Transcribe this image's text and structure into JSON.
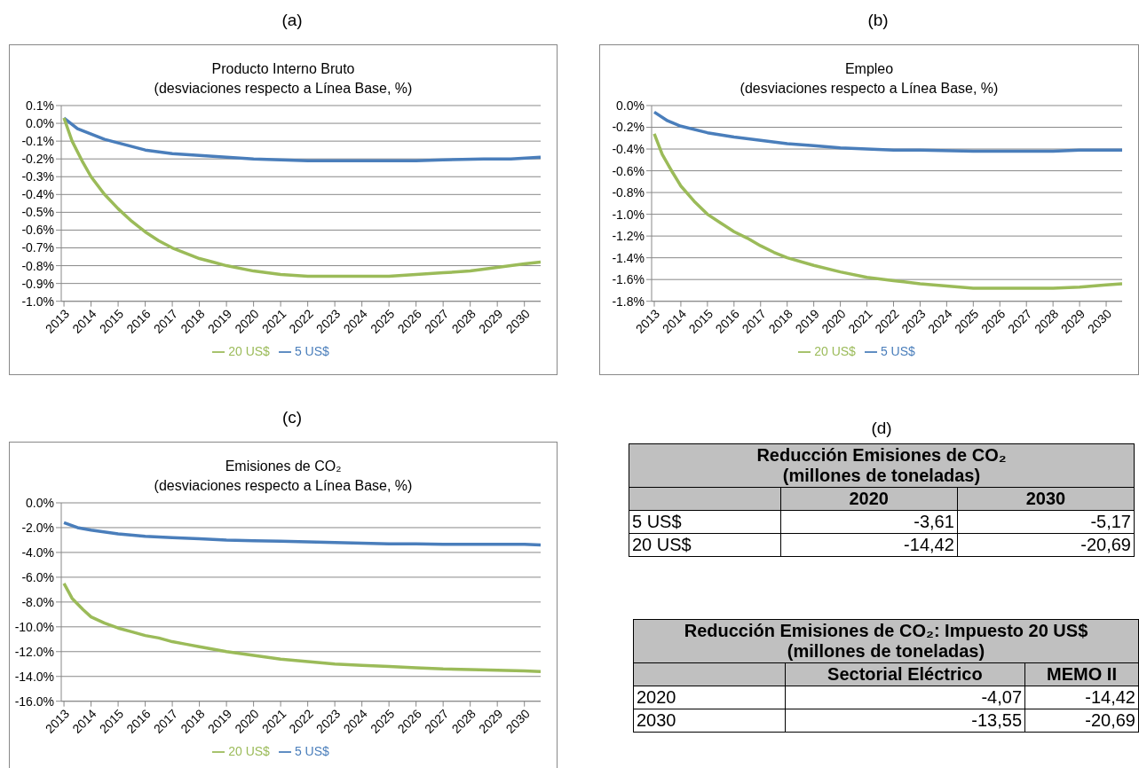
{
  "chart_data": [
    {
      "type": "line",
      "annotations": [
        "(a)"
      ],
      "title": "Producto Interno Bruto",
      "subtitle": "(desviaciones respecto a Línea Base, %)",
      "xlim": [
        2012.9,
        2030.6
      ],
      "xticks": [
        2013,
        2014,
        2015,
        2016,
        2017,
        2018,
        2019,
        2020,
        2021,
        2022,
        2023,
        2024,
        2025,
        2026,
        2027,
        2028,
        2029,
        2030
      ],
      "ylim": [
        -1.0,
        0.1
      ],
      "yticks": [
        {
          "value": 0.1,
          "label": "0.1%"
        },
        {
          "value": 0,
          "label": "0.0%"
        },
        {
          "value": -0.1,
          "label": "-0.1%"
        },
        {
          "value": -0.2,
          "label": "-0.2%"
        },
        {
          "value": -0.3,
          "label": "-0.3%"
        },
        {
          "value": -0.4,
          "label": "-0.4%"
        },
        {
          "value": -0.5,
          "label": "-0.5%"
        },
        {
          "value": -0.6,
          "label": "-0.6%"
        },
        {
          "value": -0.7,
          "label": "-0.7%"
        },
        {
          "value": -0.8,
          "label": "-0.8%"
        },
        {
          "value": -0.9,
          "label": "-0.9%"
        },
        {
          "value": -1.0,
          "label": "-1.0%"
        }
      ],
      "grid": "y",
      "legend": "bottom",
      "marker": "none",
      "line_style": "solid",
      "series": [
        {
          "name": "5 US$",
          "color": "#4a7ebb",
          "x": [
            2013,
            2013.5,
            2014,
            2014.5,
            2015,
            2016,
            2017,
            2018,
            2019,
            2020,
            2021,
            2022,
            2024,
            2026,
            2027,
            2028.5,
            2029.5,
            2030.6
          ],
          "values": [
            0.03,
            -0.03,
            -0.06,
            -0.09,
            -0.11,
            -0.15,
            -0.17,
            -0.18,
            -0.19,
            -0.2,
            -0.205,
            -0.21,
            -0.21,
            -0.21,
            -0.205,
            -0.2,
            -0.2,
            -0.19
          ]
        },
        {
          "name": "20 US$",
          "color": "#9bbb59",
          "x": [
            2013,
            2013.3,
            2013.7,
            2014,
            2014.5,
            2015,
            2015.5,
            2016,
            2016.5,
            2017,
            2017.5,
            2018,
            2018.5,
            2019,
            2020,
            2021,
            2022,
            2023,
            2024,
            2025,
            2026,
            2027,
            2028,
            2029,
            2030,
            2030.6
          ],
          "values": [
            0.03,
            -0.1,
            -0.22,
            -0.3,
            -0.4,
            -0.48,
            -0.55,
            -0.61,
            -0.66,
            -0.7,
            -0.73,
            -0.76,
            -0.78,
            -0.8,
            -0.83,
            -0.85,
            -0.86,
            -0.86,
            -0.86,
            -0.86,
            -0.85,
            -0.84,
            -0.83,
            -0.81,
            -0.79,
            -0.78
          ]
        }
      ]
    },
    {
      "type": "line",
      "annotations": [
        "(b)"
      ],
      "title": "Empleo",
      "subtitle": "(desviaciones respecto a Línea Base, %)",
      "xlim": [
        2012.9,
        2030.6
      ],
      "xticks": [
        2013,
        2014,
        2015,
        2016,
        2017,
        2018,
        2019,
        2020,
        2021,
        2022,
        2023,
        2024,
        2025,
        2026,
        2027,
        2028,
        2029,
        2030
      ],
      "ylim": [
        -1.8,
        0
      ],
      "yticks": [
        {
          "value": 0,
          "label": "0.0%"
        },
        {
          "value": -0.2,
          "label": "-0.2%"
        },
        {
          "value": -0.4,
          "label": "-0.4%"
        },
        {
          "value": -0.6,
          "label": "-0.6%"
        },
        {
          "value": -0.8,
          "label": "-0.8%"
        },
        {
          "value": -1.0,
          "label": "-1.0%"
        },
        {
          "value": -1.2,
          "label": "-1.2%"
        },
        {
          "value": -1.4,
          "label": "-1.4%"
        },
        {
          "value": -1.6,
          "label": "-1.6%"
        },
        {
          "value": -1.8,
          "label": "-1.8%"
        }
      ],
      "grid": "y",
      "legend": "bottom",
      "marker": "none",
      "line_style": "solid",
      "series": [
        {
          "name": "5 US$",
          "color": "#4a7ebb",
          "x": [
            2013,
            2013.5,
            2014,
            2015,
            2016,
            2017,
            2018,
            2019,
            2020,
            2021,
            2022,
            2023,
            2025,
            2027,
            2028,
            2029,
            2030.6
          ],
          "values": [
            -0.06,
            -0.14,
            -0.19,
            -0.25,
            -0.29,
            -0.32,
            -0.35,
            -0.37,
            -0.39,
            -0.4,
            -0.41,
            -0.41,
            -0.42,
            -0.42,
            -0.42,
            -0.41,
            -0.41
          ]
        },
        {
          "name": "20 US$",
          "color": "#9bbb59",
          "x": [
            2013,
            2013.3,
            2013.7,
            2014,
            2014.5,
            2015,
            2015.5,
            2016,
            2016.5,
            2017,
            2017.5,
            2018,
            2019,
            2020,
            2021,
            2022,
            2023,
            2024,
            2025,
            2026,
            2027,
            2028,
            2029,
            2030,
            2030.6
          ],
          "values": [
            -0.26,
            -0.45,
            -0.62,
            -0.74,
            -0.88,
            -1.0,
            -1.08,
            -1.16,
            -1.22,
            -1.29,
            -1.35,
            -1.4,
            -1.47,
            -1.53,
            -1.58,
            -1.61,
            -1.64,
            -1.66,
            -1.68,
            -1.68,
            -1.68,
            -1.68,
            -1.67,
            -1.65,
            -1.64
          ]
        }
      ]
    },
    {
      "type": "line",
      "annotations": [
        "(c)"
      ],
      "title": "Emisiones de CO₂",
      "subtitle": "(desviaciones respecto a Línea Base, %)",
      "xlim": [
        2012.9,
        2030.6
      ],
      "xticks": [
        2013,
        2014,
        2015,
        2016,
        2017,
        2018,
        2019,
        2020,
        2021,
        2022,
        2023,
        2024,
        2025,
        2026,
        2027,
        2028,
        2029,
        2030
      ],
      "ylim": [
        -16,
        0
      ],
      "yticks": [
        {
          "value": 0,
          "label": "0.0%"
        },
        {
          "value": -2,
          "label": "-2.0%"
        },
        {
          "value": -4,
          "label": "-4.0%"
        },
        {
          "value": -6,
          "label": "-6.0%"
        },
        {
          "value": -8,
          "label": "-8.0%"
        },
        {
          "value": -10,
          "label": "-10.0%"
        },
        {
          "value": -12,
          "label": "-12.0%"
        },
        {
          "value": -14,
          "label": "-14.0%"
        },
        {
          "value": -16,
          "label": "-16.0%"
        }
      ],
      "grid": "y",
      "legend": "bottom",
      "marker": "none",
      "line_style": "solid",
      "series": [
        {
          "name": "5 US$",
          "color": "#4a7ebb",
          "x": [
            2013,
            2013.5,
            2014,
            2015,
            2016,
            2017,
            2018,
            2019,
            2020,
            2021,
            2022,
            2023,
            2024,
            2025,
            2026,
            2027,
            2028,
            2029,
            2030,
            2030.6
          ],
          "values": [
            -1.6,
            -2.0,
            -2.2,
            -2.5,
            -2.7,
            -2.8,
            -2.9,
            -3.0,
            -3.05,
            -3.1,
            -3.15,
            -3.2,
            -3.25,
            -3.3,
            -3.3,
            -3.35,
            -3.35,
            -3.35,
            -3.35,
            -3.4
          ]
        },
        {
          "name": "20 US$",
          "color": "#9bbb59",
          "x": [
            2013,
            2013.3,
            2013.7,
            2014,
            2014.5,
            2015,
            2015.5,
            2016,
            2016.5,
            2017,
            2017.5,
            2018,
            2019,
            2020,
            2021,
            2022,
            2023,
            2024,
            2025,
            2026,
            2027,
            2028,
            2029,
            2030,
            2030.6
          ],
          "values": [
            -6.5,
            -7.7,
            -8.6,
            -9.2,
            -9.7,
            -10.1,
            -10.4,
            -10.7,
            -10.9,
            -11.2,
            -11.4,
            -11.6,
            -12.0,
            -12.3,
            -12.6,
            -12.8,
            -13.0,
            -13.1,
            -13.2,
            -13.3,
            -13.4,
            -13.45,
            -13.5,
            -13.55,
            -13.6
          ]
        }
      ]
    },
    {
      "type": "other",
      "annotations": [
        "(d)"
      ],
      "title": "Reducción Emisiones de CO₂",
      "subtitle": "(millones de toneladas)",
      "categories": [
        "2020",
        "2030"
      ],
      "series": [
        {
          "name": "5 US$",
          "values": [
            -3.61,
            -5.17
          ],
          "value_labels": [
            "-3,61",
            "-5,17"
          ]
        },
        {
          "name": "20 US$",
          "values": [
            -14.42,
            -20.69
          ],
          "value_labels": [
            "-14,42",
            "-20,69"
          ]
        }
      ]
    },
    {
      "type": "other",
      "title": "Reducción Emisiones de CO₂: Impuesto 20 US$",
      "subtitle": "(millones de toneladas)",
      "categories": [
        "Sectorial Eléctrico",
        "MEMO II"
      ],
      "series": [
        {
          "name": "2020",
          "values": [
            -4.07,
            -14.42
          ],
          "value_labels": [
            "-4,07",
            "-14,42"
          ]
        },
        {
          "name": "2030",
          "values": [
            -13.55,
            -20.69
          ],
          "value_labels": [
            "-13,55",
            "-20,69"
          ]
        }
      ]
    }
  ]
}
